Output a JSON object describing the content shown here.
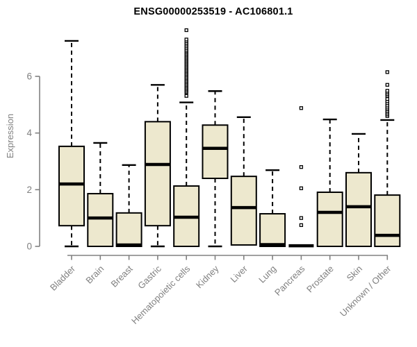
{
  "title": "ENSG00000253519 - AC106801.1",
  "chart_data": {
    "type": "boxplot",
    "title": "ENSG00000253519 - AC106801.1",
    "xlabel": "",
    "ylabel": "Expression",
    "yticks": [
      0,
      2,
      4,
      6
    ],
    "ytick_labels": [
      "0",
      "2",
      "4",
      "6"
    ],
    "ylim": [
      0,
      7.8
    ],
    "grid": false,
    "legend": "none",
    "colors": {
      "box_fill": "#EDE8CE",
      "box_stroke": "#000000",
      "median": "#000000",
      "whisker": "#000000",
      "axis": "#808080",
      "tick_label": "#808080",
      "title": "#000000",
      "outlier_stroke": "#000000",
      "outlier_fill": "#ffffff"
    },
    "categories": [
      "Bladder",
      "Brain",
      "Breast",
      "Gastric",
      "Hematopoietic cells",
      "Kidney",
      "Liver",
      "Lung",
      "Pancreas",
      "Prostate",
      "Skin",
      "Unknown / Other"
    ],
    "series": [
      {
        "name": "Bladder",
        "min": 0,
        "q1": 0.73,
        "median": 2.2,
        "q3": 3.53,
        "max": 7.25,
        "outliers": []
      },
      {
        "name": "Brain",
        "min": 0,
        "q1": 0,
        "median": 1.0,
        "q3": 1.86,
        "max": 3.65,
        "outliers": []
      },
      {
        "name": "Breast",
        "min": 0,
        "q1": 0,
        "median": 0.05,
        "q3": 1.18,
        "max": 2.87,
        "outliers": []
      },
      {
        "name": "Gastric",
        "min": 0,
        "q1": 0.73,
        "median": 2.89,
        "q3": 4.4,
        "max": 5.7,
        "outliers": []
      },
      {
        "name": "Hematopoietic cells",
        "min": 0,
        "q1": 0,
        "median": 1.03,
        "q3": 2.13,
        "max": 5.08,
        "outliers": [
          5.31,
          5.44,
          5.49,
          5.54,
          5.59,
          5.64,
          5.69,
          5.74,
          5.79,
          5.84,
          5.89,
          5.94,
          5.99,
          6.04,
          6.09,
          6.14,
          6.19,
          6.24,
          6.29,
          6.34,
          6.39,
          6.44,
          6.49,
          6.54,
          6.59,
          6.64,
          6.69,
          6.74,
          6.79,
          6.84,
          6.89,
          6.94,
          7.0,
          7.06,
          7.12,
          7.18,
          7.24,
          7.3,
          7.63
        ]
      },
      {
        "name": "Kidney",
        "min": 0,
        "q1": 2.4,
        "median": 3.46,
        "q3": 4.28,
        "max": 5.48,
        "outliers": []
      },
      {
        "name": "Liver",
        "min": 0.05,
        "q1": 0.05,
        "median": 1.37,
        "q3": 2.47,
        "max": 4.56,
        "outliers": []
      },
      {
        "name": "Lung",
        "min": 0,
        "q1": 0,
        "median": 0.06,
        "q3": 1.15,
        "max": 2.69,
        "outliers": []
      },
      {
        "name": "Pancreas",
        "min": 0.02,
        "q1": 0.02,
        "median": 0.02,
        "q3": 0.02,
        "max": 0.02,
        "outliers": [
          0.75,
          1.0,
          2.05,
          2.8,
          4.88
        ]
      },
      {
        "name": "Prostate",
        "min": 0,
        "q1": 0,
        "median": 1.2,
        "q3": 1.91,
        "max": 4.48,
        "outliers": []
      },
      {
        "name": "Skin",
        "min": 0,
        "q1": 0,
        "median": 1.4,
        "q3": 2.6,
        "max": 3.97,
        "outliers": []
      },
      {
        "name": "Unknown / Other",
        "min": 0,
        "q1": 0,
        "median": 0.39,
        "q3": 1.81,
        "max": 4.46,
        "outliers": [
          4.6,
          4.66,
          4.72,
          4.78,
          4.84,
          4.9,
          4.97,
          5.05,
          5.12,
          5.2,
          5.31,
          5.37,
          5.43,
          5.49,
          5.7,
          6.15
        ]
      }
    ]
  }
}
